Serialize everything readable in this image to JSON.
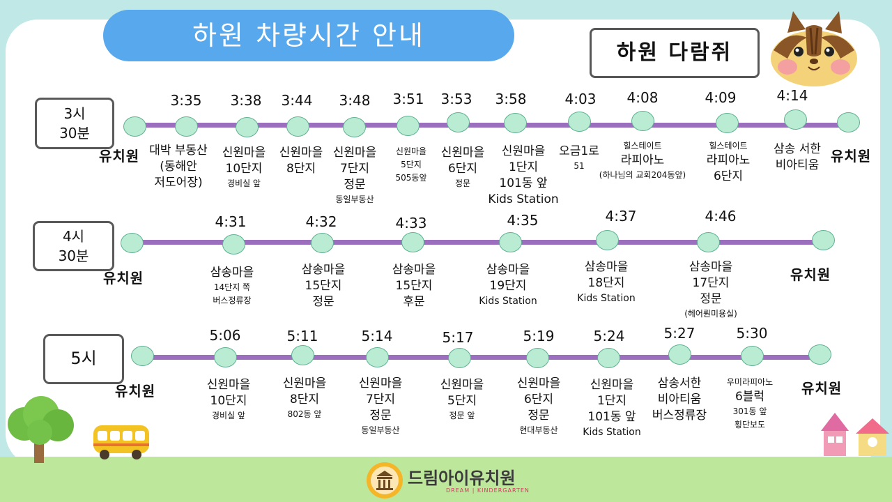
{
  "title": "하원 차량시간 안내",
  "class_name": "하원 다람쥐",
  "kindergarten_label": "유치원",
  "colors": {
    "route_line": "#9b6fbd",
    "stop_fill": "#b9ecd3",
    "title_bg": "#58a8ee"
  },
  "routes": {
    "r1": {
      "label_l1": "3시",
      "label_l2": "30분",
      "stops": [
        {
          "time": "3:35",
          "l1": "대박 부동산",
          "l2": "(동해안",
          "l3": "저도어장)"
        },
        {
          "time": "3:38",
          "l1": "신원마을",
          "l2": "10단지",
          "l3": "경비실 앞"
        },
        {
          "time": "3:44",
          "l1": "신원마을",
          "l2": "8단지"
        },
        {
          "time": "3:48",
          "l1": "신원마을",
          "l2": "7단지",
          "l3": "정문",
          "l4": "동일부동산"
        },
        {
          "time": "3:51",
          "l1": "신원마을",
          "l2": "5단지",
          "l3": "505동앞"
        },
        {
          "time": "3:53",
          "l1": "신원마을",
          "l2": "6단지",
          "l3": "정문"
        },
        {
          "time": "3:58",
          "l1": "신원마을",
          "l2": "1단지",
          "l3": "101동 앞",
          "l4": "Kids Station"
        },
        {
          "time": "4:03",
          "l1": "오금1로",
          "l2": "51"
        },
        {
          "time": "4:08",
          "l1": "힐스테이트",
          "l2": "라피아노",
          "l3": "(하나님의 교회204동앞)"
        },
        {
          "time": "4:09",
          "l1": "힐스테이트",
          "l2": "라피아노",
          "l3": "6단지"
        },
        {
          "time": "4:14",
          "l1": "삼송 서한",
          "l2": "비아티움"
        }
      ]
    },
    "r2": {
      "label_l1": "4시",
      "label_l2": "30분",
      "stops": [
        {
          "time": "4:31",
          "l1": "삼송마을",
          "l2": "14단지 쪽",
          "l3": "버스정류장"
        },
        {
          "time": "4:32",
          "l1": "삼송마을",
          "l2": "15단지",
          "l3": "정문"
        },
        {
          "time": "4:33",
          "l1": "삼송마을",
          "l2": "15단지",
          "l3": "후문"
        },
        {
          "time": "4:35",
          "l1": "삼송마을",
          "l2": "19단지",
          "l3": "Kids Station"
        },
        {
          "time": "4:37",
          "l1": "삼송마을",
          "l2": "18단지",
          "l3": "Kids Station"
        },
        {
          "time": "4:46",
          "l1": "삼송마을",
          "l2": "17단지",
          "l3": "정문",
          "l4": "(헤어뤈미용실)"
        }
      ]
    },
    "r3": {
      "label_l1": "5시",
      "stops": [
        {
          "time": "5:06",
          "l1": "신원마을",
          "l2": "10단지",
          "l3": "경비실 앞"
        },
        {
          "time": "5:11",
          "l1": "신원마을",
          "l2": "8단지",
          "l3": "802동 앞"
        },
        {
          "time": "5:14",
          "l1": "신원마을",
          "l2": "7단지",
          "l3": "정문",
          "l4": "동일부동산"
        },
        {
          "time": "5:17",
          "l1": "신원마을",
          "l2": "5단지",
          "l3": "정문 앞"
        },
        {
          "time": "5:19",
          "l1": "신원마을",
          "l2": "6단지",
          "l3": "정문",
          "l4": "현대부동산"
        },
        {
          "time": "5:24",
          "l1": "신원마을",
          "l2": "1단지",
          "l3": "101동 앞",
          "l4": "Kids Station"
        },
        {
          "time": "5:27",
          "l1": "삼송서한",
          "l2": "비아티움",
          "l3": "버스정류장"
        },
        {
          "time": "5:30",
          "l1": "우미라피아노",
          "l2": "6블럭",
          "l3": "301동 앞",
          "l4": "횡단보도"
        }
      ]
    }
  },
  "logo": {
    "name": "드림아이유치원",
    "subtitle": "DREAM | KINDERGARTEN"
  }
}
